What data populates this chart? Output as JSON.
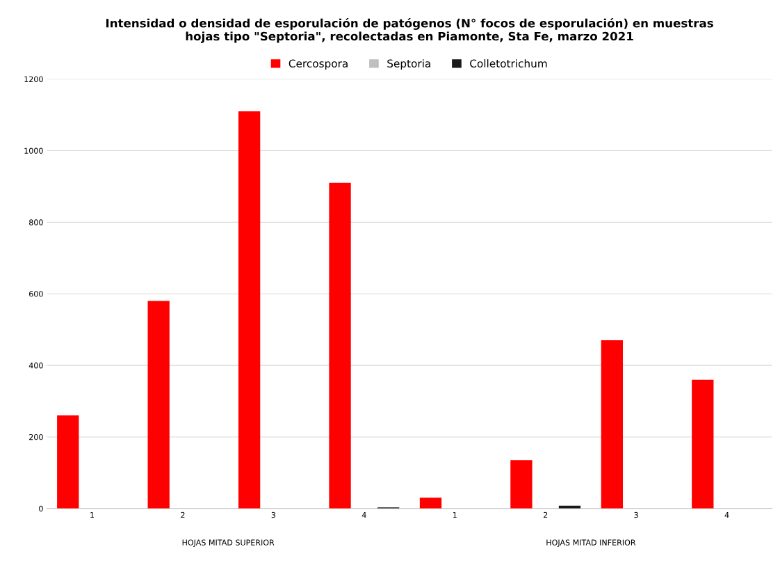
{
  "chart_data": {
    "type": "bar",
    "title": "Intensidad o densidad de esporulación de patógenos (N° focos de esporulación) en muestras\nhojas tipo \"Septoria\", recolectadas en Piamonte, Sta Fe, marzo 2021",
    "categories": [
      "1",
      "2",
      "3",
      "4",
      "1",
      "2",
      "3",
      "4"
    ],
    "series": [
      {
        "name": "Cercospora",
        "color": "#ff0000",
        "values": [
          260,
          580,
          1110,
          910,
          30,
          135,
          470,
          360
        ]
      },
      {
        "name": "Septoria",
        "color": "#bfbfbf",
        "values": [
          0,
          null,
          null,
          0,
          0,
          null,
          0,
          0
        ]
      },
      {
        "name": "Colletotrichum",
        "color": "#1a1a1a",
        "values": [
          0,
          0,
          0,
          3,
          0,
          8,
          0,
          0
        ]
      }
    ],
    "annotations": [
      "HOJAS MITAD SUPERIOR",
      "HOJAS MITAD INFERIOR"
    ],
    "ylim": [
      0,
      1200
    ],
    "yticks": [
      0,
      200,
      400,
      600,
      800,
      1000,
      1200
    ],
    "grid": "y",
    "legend": "top"
  }
}
